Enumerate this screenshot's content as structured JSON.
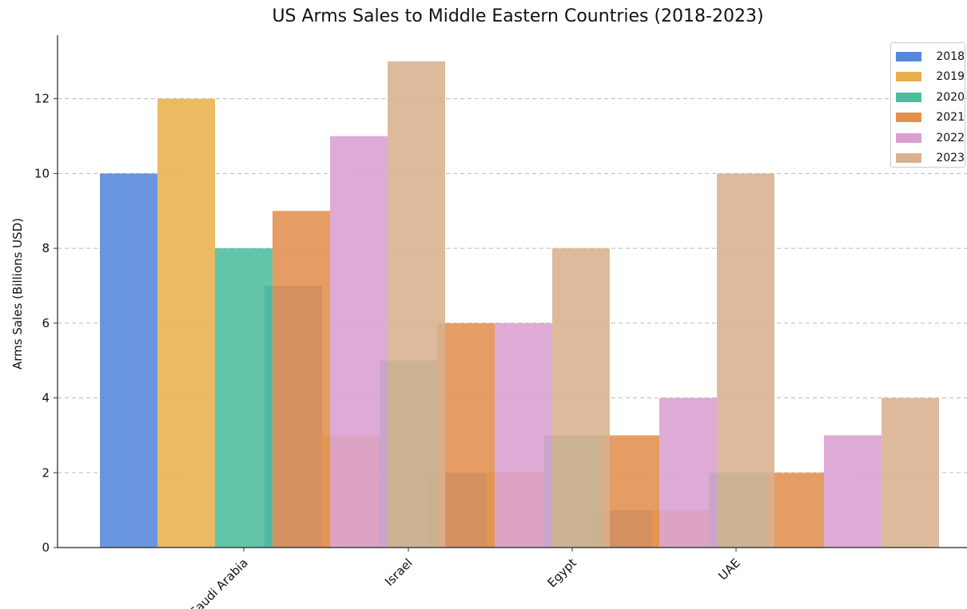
{
  "chart_data": {
    "type": "bar",
    "title": "US Arms Sales to Middle Eastern Countries (2018-2023)",
    "ylabel": "Arms Sales (Billions USD)",
    "xlabel": "",
    "ylim": [
      0,
      13.7
    ],
    "yticks": [
      "0",
      "2",
      "4",
      "6",
      "8",
      "10",
      "12"
    ],
    "categories": [
      "Saudi Arabia",
      "Israel",
      "Egypt",
      "UAE"
    ],
    "series": [
      {
        "name": "2018",
        "color": "#5588dd",
        "values": [
          10,
          7,
          2,
          1
        ]
      },
      {
        "name": "2019",
        "color": "#e8b04c",
        "values": [
          12,
          3,
          2,
          1
        ]
      },
      {
        "name": "2020",
        "color": "#4dbd9d",
        "values": [
          8,
          5,
          3,
          2
        ]
      },
      {
        "name": "2021",
        "color": "#e3904f",
        "values": [
          9,
          6,
          3,
          2
        ]
      },
      {
        "name": "2022",
        "color": "#d99fd0",
        "values": [
          11,
          6,
          4,
          3
        ]
      },
      {
        "name": "2023",
        "color": "#d9b190",
        "values": [
          13,
          8,
          10,
          4
        ]
      }
    ],
    "grid": "y-dashed",
    "legend_position": "top-right"
  }
}
